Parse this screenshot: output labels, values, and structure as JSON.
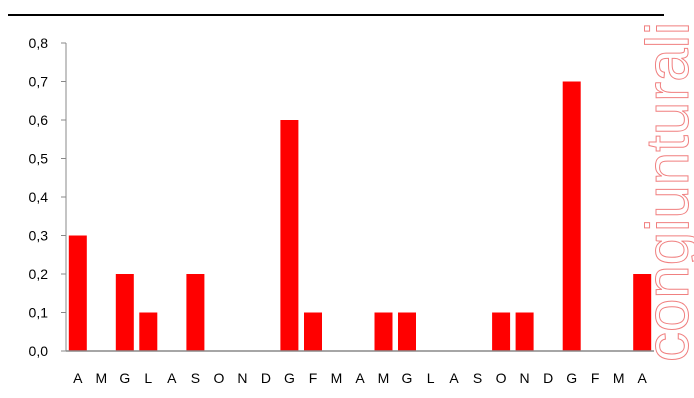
{
  "watermark": "congiunturali",
  "colors": {
    "bar": "#ff0000",
    "axis": "#888888",
    "top_rule": "#000000",
    "watermark": "#f08080"
  },
  "chart_data": {
    "type": "bar",
    "title": "",
    "xlabel": "",
    "ylabel": "",
    "ylim": [
      0,
      0.8
    ],
    "y_ticks": [
      "0,0",
      "0,1",
      "0,2",
      "0,3",
      "0,4",
      "0,5",
      "0,6",
      "0,7",
      "0,8"
    ],
    "categories": [
      "A",
      "M",
      "G",
      "L",
      "A",
      "S",
      "O",
      "N",
      "D",
      "G",
      "F",
      "M",
      "A",
      "M",
      "G",
      "L",
      "A",
      "S",
      "O",
      "N",
      "D",
      "G",
      "F",
      "M",
      "A"
    ],
    "values": [
      0.3,
      0,
      0.2,
      0.1,
      0,
      0.2,
      0,
      0,
      0,
      0.6,
      0.1,
      0,
      0,
      0.1,
      0.1,
      0,
      0,
      0,
      0.1,
      0.1,
      0,
      0.7,
      0,
      0,
      0.2
    ],
    "grid": false,
    "legend": "none"
  }
}
